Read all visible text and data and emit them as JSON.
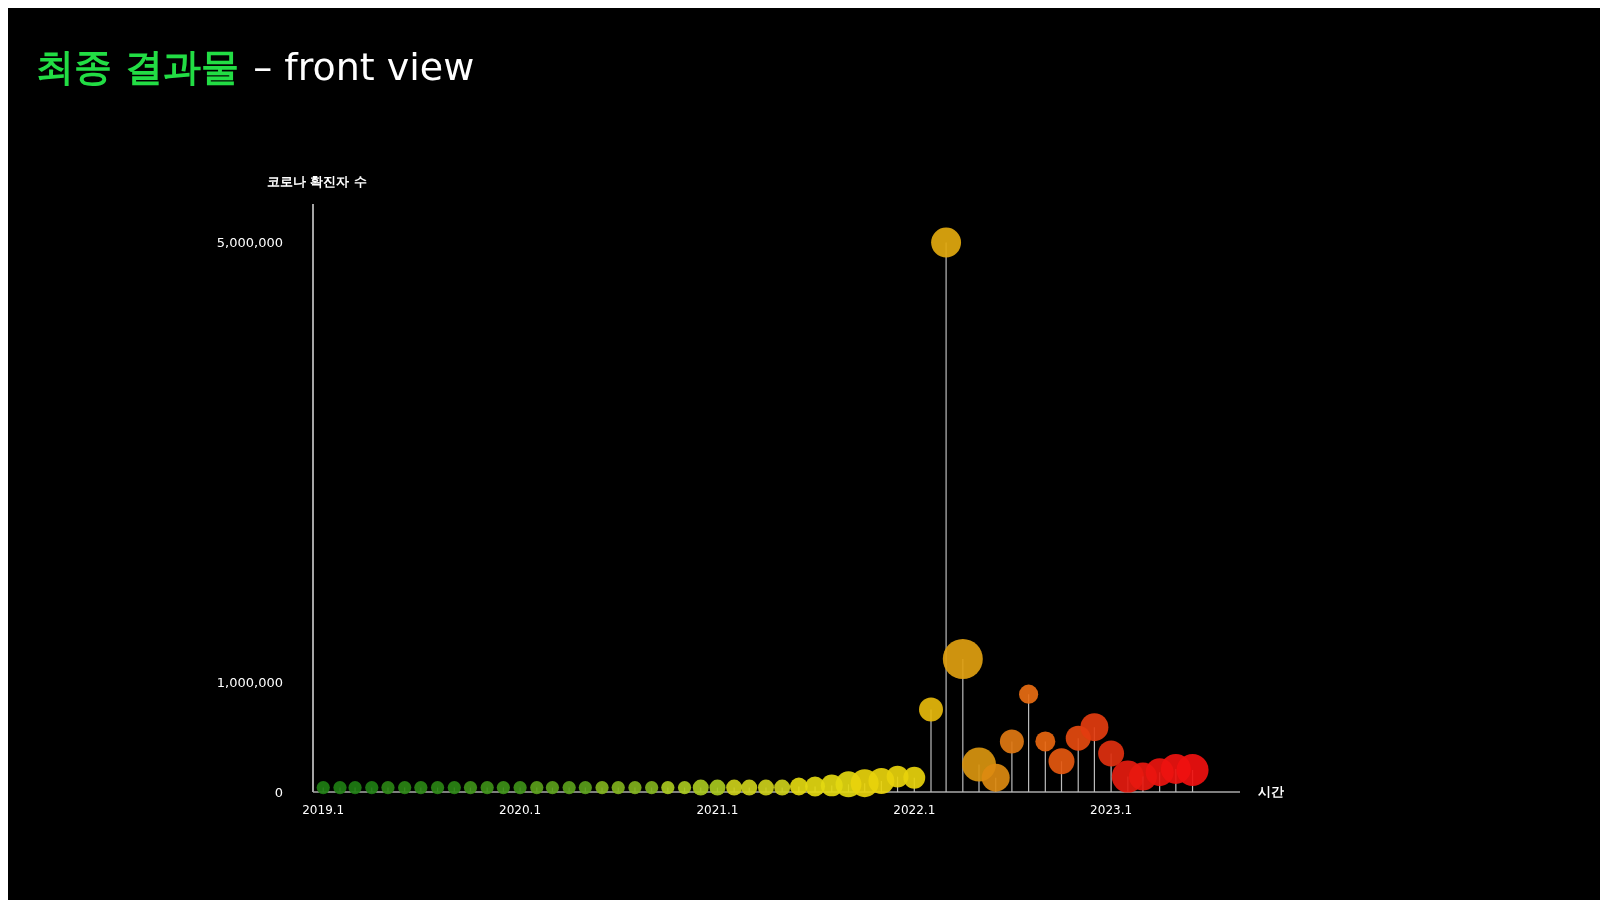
{
  "chart_data": {
    "type": "lollipop",
    "title": "최종 결과물",
    "subtitle": "– front view",
    "ylabel": "코로나 확진자 수",
    "xlabel": "시간",
    "x": [
      "2019-01",
      "2019-02",
      "2019-03",
      "2019-04",
      "2019-05",
      "2019-06",
      "2019-07",
      "2019-08",
      "2019-09",
      "2019-10",
      "2019-11",
      "2019-12",
      "2020-01",
      "2020-02",
      "2020-03",
      "2020-04",
      "2020-05",
      "2020-06",
      "2020-07",
      "2020-08",
      "2020-09",
      "2020-10",
      "2020-11",
      "2020-12",
      "2021-01",
      "2021-02",
      "2021-03",
      "2021-04",
      "2021-05",
      "2021-06",
      "2021-07",
      "2021-08",
      "2021-09",
      "2021-10",
      "2021-11",
      "2021-12",
      "2022-01",
      "2022-02",
      "2022-03",
      "2022-04",
      "2022-05",
      "2022-06",
      "2022-07",
      "2022-08",
      "2022-09",
      "2022-10",
      "2022-11",
      "2022-12",
      "2023-01",
      "2023-02",
      "2023-03",
      "2023-04",
      "2023-05",
      "2023-06"
    ],
    "values": [
      40000,
      40000,
      40000,
      40000,
      40000,
      40000,
      40000,
      40000,
      40000,
      40000,
      40000,
      40000,
      40000,
      40000,
      40000,
      40000,
      40000,
      40000,
      40000,
      40000,
      40000,
      40000,
      40000,
      40000,
      40000,
      40000,
      40000,
      40000,
      40000,
      50000,
      50000,
      60000,
      70000,
      80000,
      100000,
      140000,
      130000,
      750000,
      5000000,
      1210000,
      250000,
      130000,
      460000,
      890000,
      460000,
      280000,
      490000,
      590000,
      350000,
      140000,
      140000,
      180000,
      210000,
      200000
    ],
    "sizes": [
      0.11,
      0.11,
      0.11,
      0.11,
      0.11,
      0.11,
      0.11,
      0.11,
      0.11,
      0.11,
      0.11,
      0.11,
      0.11,
      0.11,
      0.11,
      0.11,
      0.11,
      0.11,
      0.11,
      0.11,
      0.11,
      0.11,
      0.11,
      0.16,
      0.16,
      0.16,
      0.16,
      0.16,
      0.16,
      0.2,
      0.25,
      0.3,
      0.42,
      0.49,
      0.42,
      0.3,
      0.3,
      0.36,
      0.56,
      1,
      0.72,
      0.49,
      0.36,
      0.23,
      0.25,
      0.42,
      0.39,
      0.49,
      0.42,
      0.64,
      0.49,
      0.49,
      0.56,
      0.64
    ],
    "colors": [
      "#1e7d12",
      "#1e7d12",
      "#1e7d12",
      "#1e7d12",
      "#2a8414",
      "#2a8414",
      "#2a8414",
      "#2a8414",
      "#2a8414",
      "#3d9017",
      "#3d9017",
      "#3d9017",
      "#3d9017",
      "#5a9e1a",
      "#5a9e1a",
      "#5a9e1a",
      "#5a9e1a",
      "#80b11c",
      "#80b11c",
      "#80b11c",
      "#80b11c",
      "#a8c81e",
      "#a8c81e",
      "#a8c81e",
      "#a8c81e",
      "#cccf1a",
      "#cccf1a",
      "#cccf1a",
      "#cccf1a",
      "#e3d810",
      "#e3d810",
      "#e3d810",
      "#e3d810",
      "#e8d20c",
      "#e8d20c",
      "#e8d20c",
      "#e8d20c",
      "#e6b90c",
      "#e2a90e",
      "#e0a010",
      "#d9950f",
      "#dc8a10",
      "#e07812",
      "#e86c12",
      "#e8660f",
      "#e5580f",
      "#e54a0f",
      "#e33c0f",
      "#e0300f",
      "#e51b0f",
      "#e8180f",
      "#ea150f",
      "#ee120f",
      "#f0100f"
    ],
    "xlim": [
      "2018-12-13",
      "2023-08-28"
    ],
    "xticks": [
      {
        "value": "2019-01",
        "label": "2019.1"
      },
      {
        "value": "2020-01",
        "label": "2020.1"
      },
      {
        "value": "2021-01",
        "label": "2021.1"
      },
      {
        "value": "2022-01",
        "label": "2022.1"
      },
      {
        "value": "2023-01",
        "label": "2023.1"
      }
    ],
    "ylim": [
      0,
      5350000
    ],
    "yticks": [
      {
        "value": 0,
        "label": "0"
      },
      {
        "value": 1000000,
        "label": "1,000,000"
      },
      {
        "value": 5000000,
        "label": "5,000,000"
      }
    ]
  }
}
